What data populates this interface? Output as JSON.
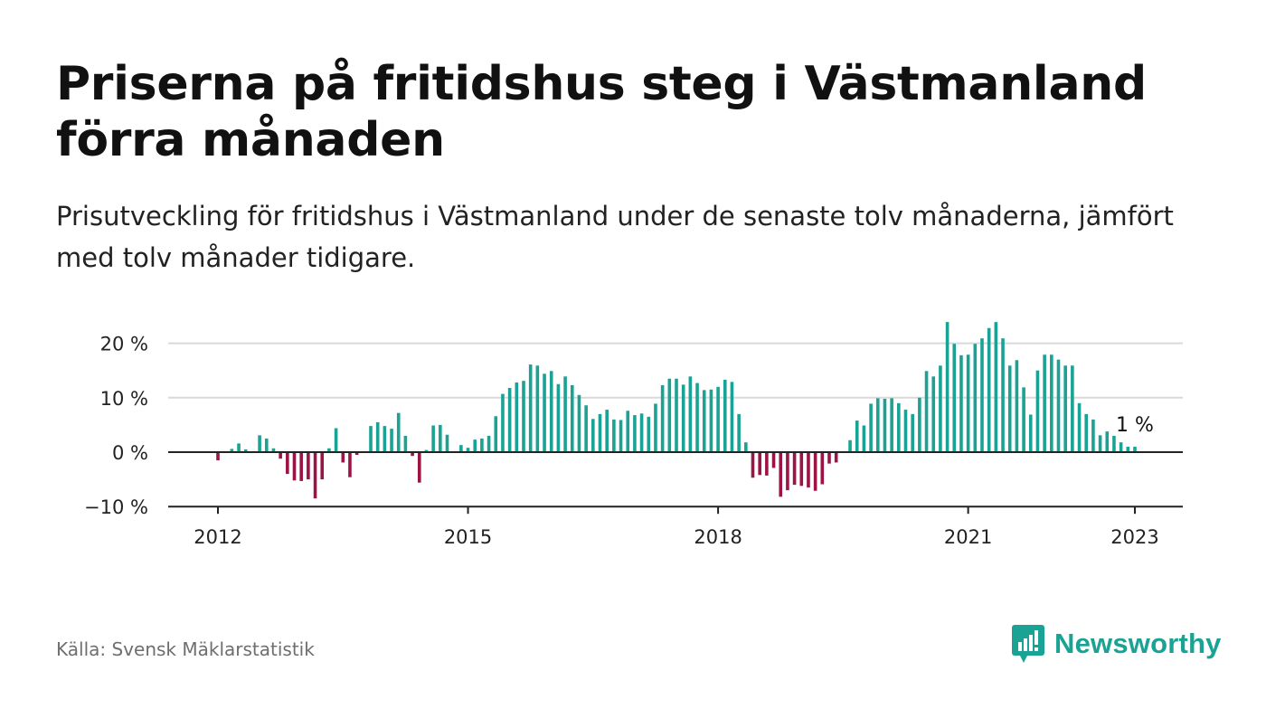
{
  "title": "Priserna på fritidshus steg i Västmanland förra månaden",
  "subtitle": "Prisutveckling för fritidshus i Västmanland under de senaste tolv månaderna, jämfört med tolv månader tidigare.",
  "source": "Källa: Svensk Mäklarstatistik",
  "brand": "Newsworthy",
  "colors": {
    "positive": "#1aa394",
    "negative": "#9c1446",
    "grid": "#d9d9d9",
    "axis": "#222222",
    "brand": "#1aa394"
  },
  "chart_data": {
    "type": "bar",
    "title": "Priserna på fritidshus steg i Västmanland förra månaden",
    "xlabel": "",
    "ylabel": "",
    "ylim": [
      -10,
      24
    ],
    "x_start": "2012-01",
    "x_end": "2023-01",
    "yticks": [
      {
        "value": 20,
        "label": "20 %"
      },
      {
        "value": 10,
        "label": "10 %"
      },
      {
        "value": 0,
        "label": "0 %"
      },
      {
        "value": -10,
        "label": "−10 %"
      }
    ],
    "xticks": [
      {
        "date": "2012-01",
        "label": "2012"
      },
      {
        "date": "2015-01",
        "label": "2015"
      },
      {
        "date": "2018-01",
        "label": "2018"
      },
      {
        "date": "2021-01",
        "label": "2021"
      },
      {
        "date": "2023-01",
        "label": "2023"
      }
    ],
    "grid": true,
    "annotation": {
      "date": "2023-01",
      "value": 1,
      "label": "1 %"
    },
    "months": [
      "2012-01",
      "2012-02",
      "2012-03",
      "2012-04",
      "2012-05",
      "2012-06",
      "2012-07",
      "2012-08",
      "2012-09",
      "2012-10",
      "2012-11",
      "2012-12",
      "2013-01",
      "2013-02",
      "2013-03",
      "2013-04",
      "2013-05",
      "2013-06",
      "2013-07",
      "2013-08",
      "2013-09",
      "2013-10",
      "2013-11",
      "2013-12",
      "2014-01",
      "2014-02",
      "2014-03",
      "2014-04",
      "2014-05",
      "2014-06",
      "2014-07",
      "2014-08",
      "2014-09",
      "2014-10",
      "2014-11",
      "2014-12",
      "2015-01",
      "2015-02",
      "2015-03",
      "2015-04",
      "2015-05",
      "2015-06",
      "2015-07",
      "2015-08",
      "2015-09",
      "2015-10",
      "2015-11",
      "2015-12",
      "2016-01",
      "2016-02",
      "2016-03",
      "2016-04",
      "2016-05",
      "2016-06",
      "2016-07",
      "2016-08",
      "2016-09",
      "2016-10",
      "2016-11",
      "2016-12",
      "2017-01",
      "2017-02",
      "2017-03",
      "2017-04",
      "2017-05",
      "2017-06",
      "2017-07",
      "2017-08",
      "2017-09",
      "2017-10",
      "2017-11",
      "2017-12",
      "2018-01",
      "2018-02",
      "2018-03",
      "2018-04",
      "2018-05",
      "2018-06",
      "2018-07",
      "2018-08",
      "2018-09",
      "2018-10",
      "2018-11",
      "2018-12",
      "2019-01",
      "2019-02",
      "2019-03",
      "2019-04",
      "2019-05",
      "2019-06",
      "2019-07",
      "2019-08",
      "2019-09",
      "2019-10",
      "2019-11",
      "2019-12",
      "2020-01",
      "2020-02",
      "2020-03",
      "2020-04",
      "2020-05",
      "2020-06",
      "2020-07",
      "2020-08",
      "2020-09",
      "2020-10",
      "2020-11",
      "2020-12",
      "2021-01",
      "2021-02",
      "2021-03",
      "2021-04",
      "2021-05",
      "2021-06",
      "2021-07",
      "2021-08",
      "2021-09",
      "2021-10",
      "2021-11",
      "2021-12",
      "2022-01",
      "2022-02",
      "2022-03",
      "2022-04",
      "2022-05",
      "2022-06",
      "2022-07",
      "2022-08",
      "2022-09",
      "2022-10",
      "2022-11",
      "2022-12",
      "2023-01"
    ],
    "values": [
      -1.5,
      null,
      0.6,
      1.6,
      0.5,
      null,
      3.1,
      2.5,
      0.7,
      -1.2,
      -4,
      -5.2,
      -5.3,
      -5,
      -8.5,
      -5,
      0.7,
      4.4,
      -1.9,
      -4.6,
      -0.5,
      null,
      4.8,
      5.5,
      4.8,
      4.3,
      7.2,
      3.0,
      -0.7,
      -5.6,
      0.4,
      4.9,
      5.0,
      3.2,
      null,
      1.3,
      0.8,
      2.3,
      2.5,
      3.0,
      6.6,
      10.7,
      11.8,
      12.8,
      13.1,
      16.1,
      15.9,
      14.4,
      14.9,
      12.5,
      13.9,
      12.3,
      10.5,
      8.6,
      6.1,
      7.0,
      7.8,
      6.0,
      5.9,
      7.6,
      6.8,
      7.1,
      6.5,
      8.9,
      12.3,
      13.5,
      13.5,
      12.4,
      13.9,
      12.7,
      11.4,
      11.5,
      12.0,
      13.3,
      12.9,
      7.0,
      1.8,
      -4.7,
      -4.2,
      -4.3,
      -2.9,
      -8.2,
      -7.0,
      -6.0,
      -6.2,
      -6.5,
      -7.1,
      -5.9,
      -2.1,
      -1.9,
      null,
      2.2,
      5.8,
      4.9,
      8.9,
      9.9,
      9.8,
      9.9,
      9.0,
      7.8,
      7.0,
      10.0,
      14.9,
      13.9,
      15.9,
      23.9,
      19.9,
      17.8,
      17.9,
      19.9,
      20.9,
      22.8,
      23.9,
      20.9,
      15.9,
      16.9,
      11.9,
      6.9,
      15.0,
      17.9,
      17.9,
      17.0,
      15.9,
      15.9,
      9.0,
      7.0,
      6.0,
      3.1,
      3.8,
      3.0,
      1.8,
      1.0,
      1.0
    ]
  }
}
